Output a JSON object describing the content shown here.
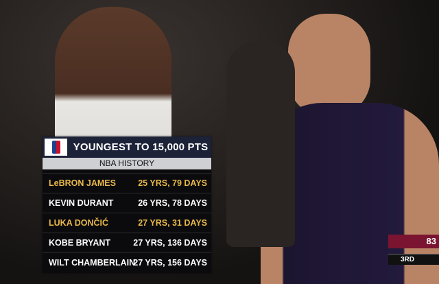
{
  "graphic": {
    "title": "YOUNGEST TO 15,000 PTS",
    "subtitle": "NBA HISTORY",
    "highlight_color": "#e9b84a",
    "text_color": "#ffffff",
    "rows": [
      {
        "name": "LeBRON JAMES",
        "age": "25 YRS, 79 DAYS",
        "highlight": true
      },
      {
        "name": "KEVIN DURANT",
        "age": "26 YRS, 78 DAYS",
        "highlight": false
      },
      {
        "name": "LUKA DONČIĆ",
        "age": "27 YRS, 31 DAYS",
        "highlight": true
      },
      {
        "name": "KOBE BRYANT",
        "age": "27 YRS, 136 DAYS",
        "highlight": false
      },
      {
        "name": "WILT CHAMBERLAIN",
        "age": "27 YRS, 156 DAYS",
        "highlight": false
      }
    ]
  },
  "scorebug": {
    "score": "83",
    "period": "3RD"
  }
}
